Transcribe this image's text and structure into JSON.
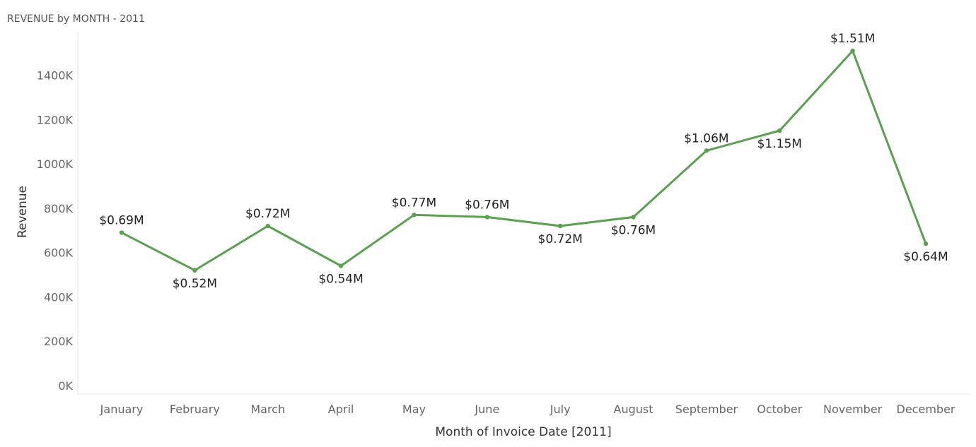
{
  "chart_data": {
    "type": "line",
    "title": "REVENUE by MONTH - 2011",
    "xlabel": "Month of Invoice Date [2011]",
    "ylabel": "Revenue",
    "categories": [
      "January",
      "February",
      "March",
      "April",
      "May",
      "June",
      "July",
      "August",
      "September",
      "October",
      "November",
      "December"
    ],
    "values": [
      690000,
      520000,
      720000,
      540000,
      770000,
      760000,
      720000,
      760000,
      1060000,
      1150000,
      1510000,
      640000
    ],
    "data_labels": [
      "$0.69M",
      "$0.52M",
      "$0.72M",
      "$0.54M",
      "$0.77M",
      "$0.76M",
      "$0.72M",
      "$0.76M",
      "$1.06M",
      "$1.15M",
      "$1.51M",
      "$0.64M"
    ],
    "label_positions": [
      "above",
      "below",
      "above",
      "below",
      "above",
      "above",
      "below",
      "below",
      "above",
      "below",
      "above",
      "below"
    ],
    "yticks": [
      0,
      200000,
      400000,
      600000,
      800000,
      1000000,
      1200000,
      1400000
    ],
    "ytick_labels": [
      "0K",
      "200K",
      "400K",
      "600K",
      "800K",
      "1000K",
      "1200K",
      "1400K"
    ],
    "ylim": [
      0,
      1550000
    ],
    "grid": false,
    "legend": "none",
    "colors": {
      "line": "#59A14F",
      "marker": "#59A14F",
      "tick_text": "#666666",
      "axis_title_text": "#333333",
      "data_label_text": "#222222",
      "title_text": "#555555",
      "axis_line": "#e6e6e6"
    }
  }
}
